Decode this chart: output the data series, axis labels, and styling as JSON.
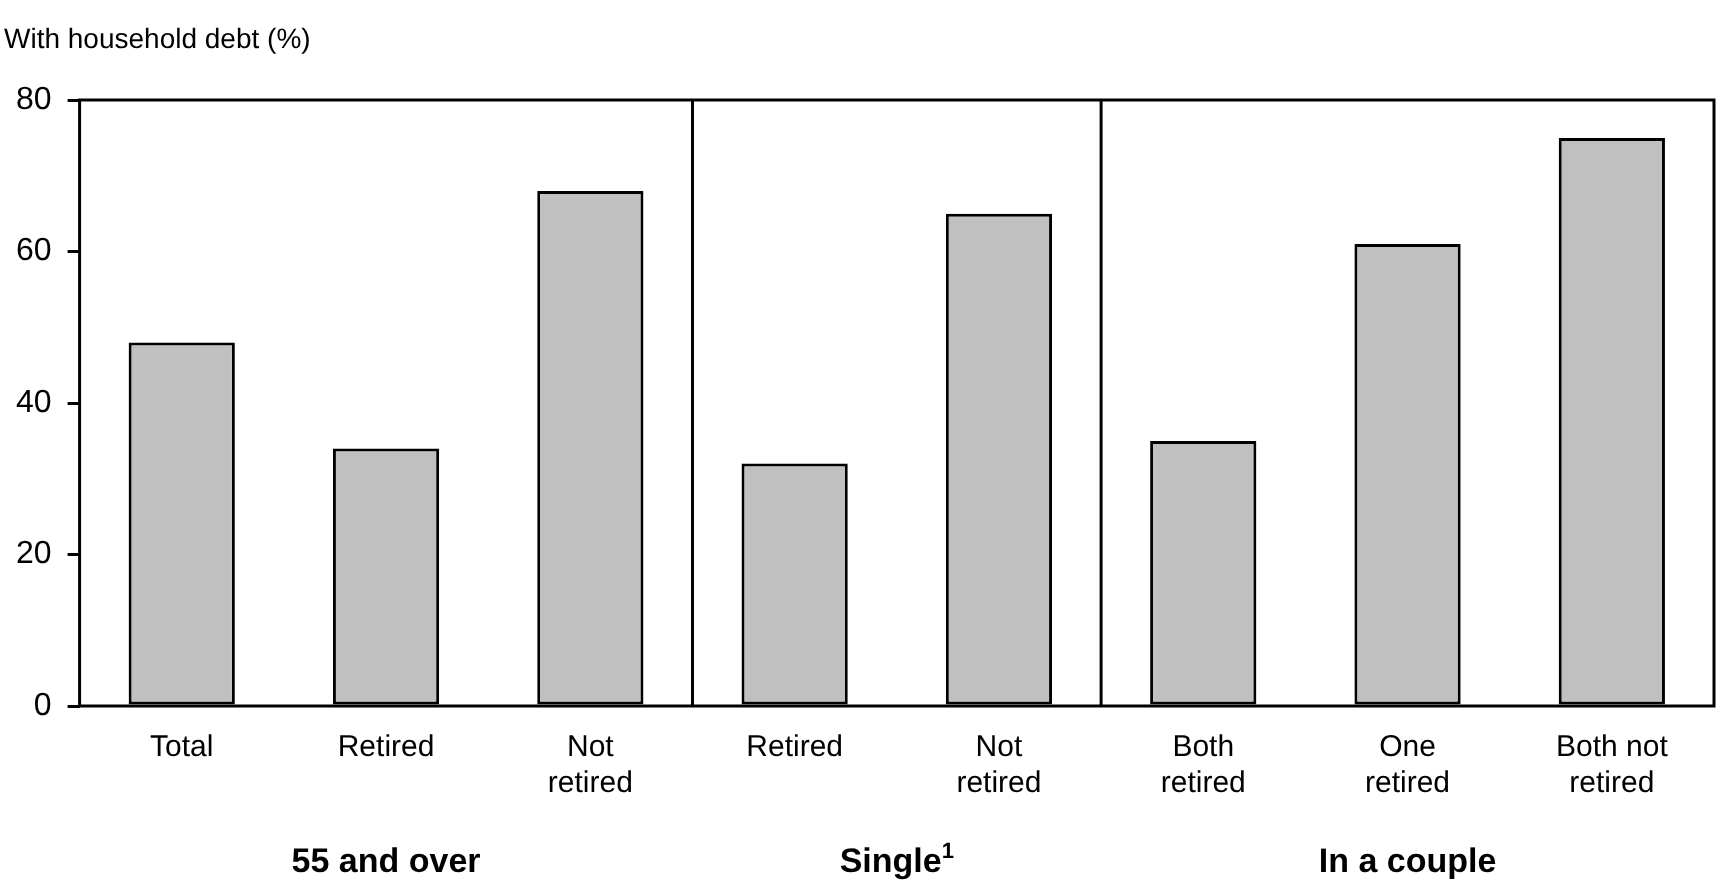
{
  "chart_data": {
    "type": "bar",
    "ylabel": "With household debt (%)",
    "categories": [
      "Total",
      "Retired",
      "Not retired",
      "Retired",
      "Not retired",
      "Both retired",
      "One retired",
      "Both not retired"
    ],
    "values": [
      48,
      34,
      68,
      32,
      65,
      35,
      61,
      75
    ],
    "color": "#c0c0c0",
    "ylim": [
      0,
      80
    ],
    "yticks": [
      0,
      20,
      40,
      60,
      80
    ],
    "grid": false,
    "legend": false,
    "annotations": [
      "55 and over",
      "Single$^{1}$",
      "In a couple"
    ]
  }
}
